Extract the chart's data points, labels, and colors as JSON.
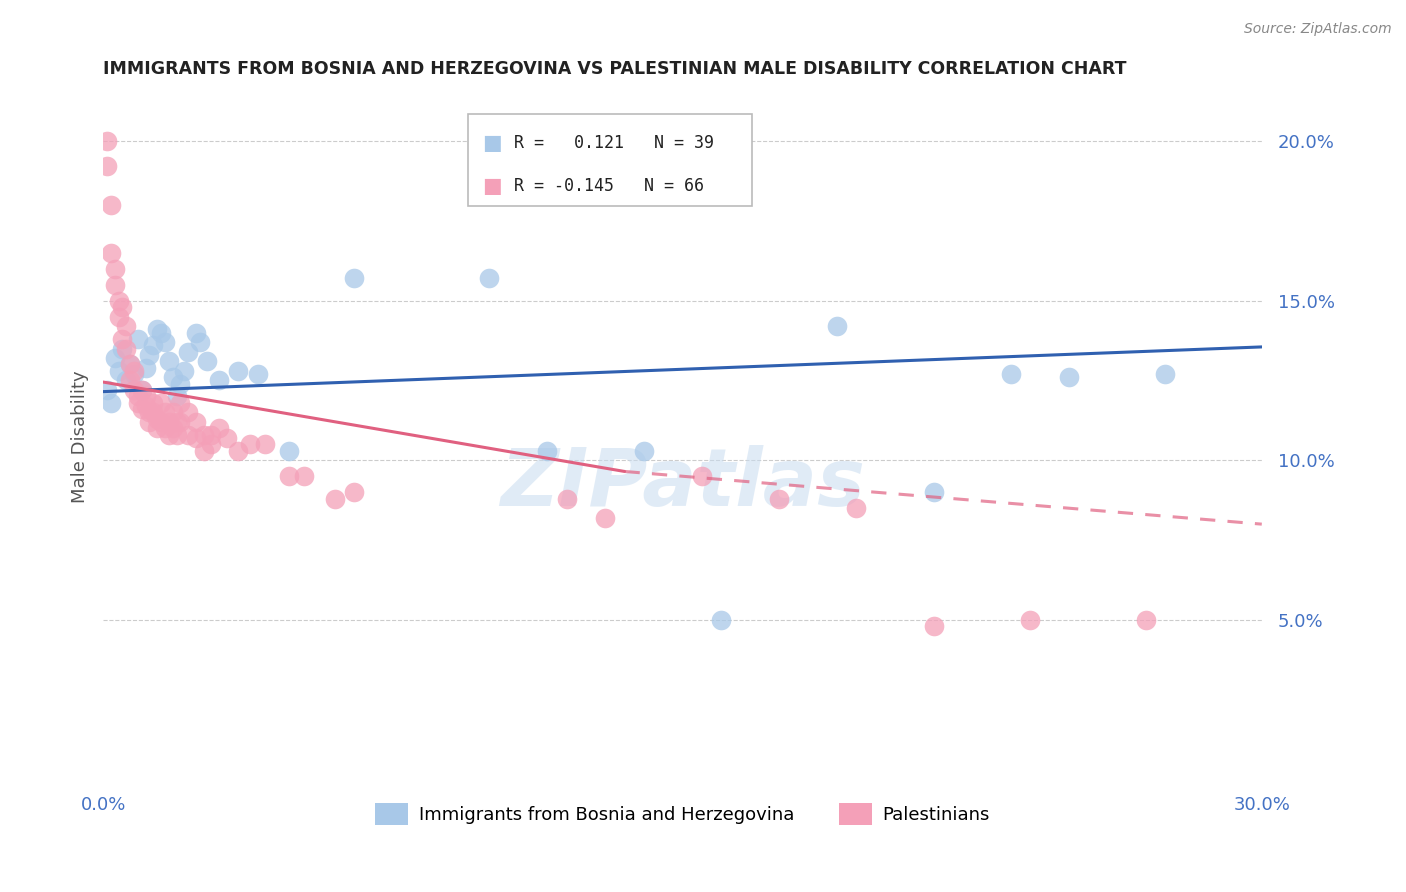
{
  "title": "IMMIGRANTS FROM BOSNIA AND HERZEGOVINA VS PALESTINIAN MALE DISABILITY CORRELATION CHART",
  "source": "Source: ZipAtlas.com",
  "ylabel": "Male Disability",
  "xlim": [
    0.0,
    0.3
  ],
  "ylim": [
    0.0,
    0.215
  ],
  "color_blue": "#a8c8e8",
  "color_pink": "#f4a0b8",
  "color_blue_line": "#3060b0",
  "color_pink_line": "#e06080",
  "watermark": "ZIPatlas",
  "bosnia_points": [
    [
      0.001,
      0.122
    ],
    [
      0.002,
      0.118
    ],
    [
      0.003,
      0.132
    ],
    [
      0.004,
      0.128
    ],
    [
      0.005,
      0.135
    ],
    [
      0.006,
      0.125
    ],
    [
      0.007,
      0.13
    ],
    [
      0.008,
      0.127
    ],
    [
      0.009,
      0.138
    ],
    [
      0.01,
      0.122
    ],
    [
      0.011,
      0.129
    ],
    [
      0.012,
      0.133
    ],
    [
      0.013,
      0.136
    ],
    [
      0.014,
      0.141
    ],
    [
      0.015,
      0.14
    ],
    [
      0.016,
      0.137
    ],
    [
      0.017,
      0.131
    ],
    [
      0.018,
      0.126
    ],
    [
      0.019,
      0.12
    ],
    [
      0.02,
      0.124
    ],
    [
      0.021,
      0.128
    ],
    [
      0.022,
      0.134
    ],
    [
      0.024,
      0.14
    ],
    [
      0.025,
      0.137
    ],
    [
      0.027,
      0.131
    ],
    [
      0.03,
      0.125
    ],
    [
      0.035,
      0.128
    ],
    [
      0.04,
      0.127
    ],
    [
      0.048,
      0.103
    ],
    [
      0.065,
      0.157
    ],
    [
      0.1,
      0.157
    ],
    [
      0.115,
      0.103
    ],
    [
      0.14,
      0.103
    ],
    [
      0.16,
      0.05
    ],
    [
      0.19,
      0.142
    ],
    [
      0.215,
      0.09
    ],
    [
      0.235,
      0.127
    ],
    [
      0.25,
      0.126
    ],
    [
      0.275,
      0.127
    ]
  ],
  "palestinian_points": [
    [
      0.001,
      0.2
    ],
    [
      0.001,
      0.192
    ],
    [
      0.002,
      0.18
    ],
    [
      0.002,
      0.165
    ],
    [
      0.003,
      0.155
    ],
    [
      0.003,
      0.16
    ],
    [
      0.004,
      0.15
    ],
    [
      0.004,
      0.145
    ],
    [
      0.005,
      0.148
    ],
    [
      0.005,
      0.138
    ],
    [
      0.006,
      0.142
    ],
    [
      0.006,
      0.135
    ],
    [
      0.007,
      0.13
    ],
    [
      0.007,
      0.125
    ],
    [
      0.008,
      0.128
    ],
    [
      0.008,
      0.122
    ],
    [
      0.009,
      0.12
    ],
    [
      0.009,
      0.118
    ],
    [
      0.01,
      0.116
    ],
    [
      0.01,
      0.122
    ],
    [
      0.011,
      0.12
    ],
    [
      0.011,
      0.117
    ],
    [
      0.012,
      0.115
    ],
    [
      0.012,
      0.112
    ],
    [
      0.013,
      0.118
    ],
    [
      0.013,
      0.115
    ],
    [
      0.014,
      0.113
    ],
    [
      0.014,
      0.11
    ],
    [
      0.015,
      0.118
    ],
    [
      0.015,
      0.112
    ],
    [
      0.016,
      0.115
    ],
    [
      0.016,
      0.11
    ],
    [
      0.017,
      0.112
    ],
    [
      0.017,
      0.108
    ],
    [
      0.018,
      0.115
    ],
    [
      0.018,
      0.11
    ],
    [
      0.019,
      0.112
    ],
    [
      0.019,
      0.108
    ],
    [
      0.02,
      0.118
    ],
    [
      0.02,
      0.112
    ],
    [
      0.022,
      0.115
    ],
    [
      0.022,
      0.108
    ],
    [
      0.024,
      0.112
    ],
    [
      0.024,
      0.107
    ],
    [
      0.026,
      0.108
    ],
    [
      0.026,
      0.103
    ],
    [
      0.028,
      0.108
    ],
    [
      0.028,
      0.105
    ],
    [
      0.03,
      0.11
    ],
    [
      0.032,
      0.107
    ],
    [
      0.035,
      0.103
    ],
    [
      0.038,
      0.105
    ],
    [
      0.042,
      0.105
    ],
    [
      0.048,
      0.095
    ],
    [
      0.052,
      0.095
    ],
    [
      0.06,
      0.088
    ],
    [
      0.065,
      0.09
    ],
    [
      0.12,
      0.088
    ],
    [
      0.13,
      0.082
    ],
    [
      0.155,
      0.095
    ],
    [
      0.175,
      0.088
    ],
    [
      0.195,
      0.085
    ],
    [
      0.215,
      0.048
    ],
    [
      0.24,
      0.05
    ],
    [
      0.27,
      0.05
    ]
  ],
  "bosnia_line": {
    "x0": 0.0,
    "x1": 0.3,
    "y0": 0.1215,
    "y1": 0.1355
  },
  "palestinian_line_solid": {
    "x0": 0.0,
    "x1": 0.135,
    "y0": 0.1245,
    "y1": 0.0965
  },
  "palestinian_line_dash": {
    "x0": 0.135,
    "x1": 0.3,
    "y0": 0.0965,
    "y1": 0.08
  }
}
